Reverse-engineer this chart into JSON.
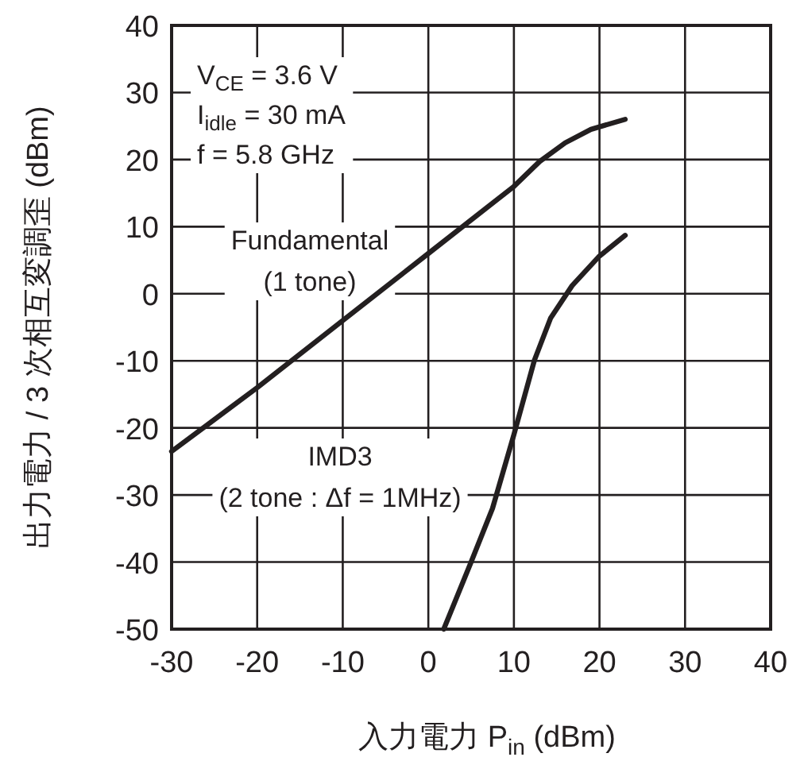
{
  "chart_data": {
    "type": "line",
    "xlabel": "入力電力 P$_{in}$ (dBm)",
    "ylabel": "出力電力 / 3 次相互変調歪 (dBm)",
    "xlim": [
      -30,
      40
    ],
    "ylim": [
      -50,
      40
    ],
    "xticks": [
      -30,
      -20,
      -10,
      0,
      10,
      20,
      30,
      40
    ],
    "yticks": [
      -50,
      -40,
      -30,
      -20,
      -10,
      0,
      10,
      20,
      30,
      40
    ],
    "grid": true,
    "marker": "none",
    "line_style": "solid",
    "annotations": [
      "V$_{CE}$ = 3.6 V",
      "I$_{idle}$ = 30 mA",
      "f = 5.8 GHz"
    ],
    "series": [
      {
        "name": "Fundamental (1 tone)",
        "color": "#231f20",
        "x": [
          -30,
          -20,
          -10,
          0,
          10,
          13,
          16,
          19,
          23
        ],
        "values": [
          -23.5,
          -14,
          -4,
          6,
          16,
          19.7,
          22.5,
          24.5,
          26
        ]
      },
      {
        "name": "IMD3 (2 tone : Δf = 1MHz)",
        "color": "#231f20",
        "x": [
          1.8,
          5,
          7.5,
          10,
          12.4,
          14.3,
          16.8,
          19.9,
          23
        ],
        "values": [
          -50,
          -40,
          -32,
          -21,
          -9.9,
          -3.6,
          1.2,
          5.5,
          8.7
        ]
      }
    ]
  }
}
